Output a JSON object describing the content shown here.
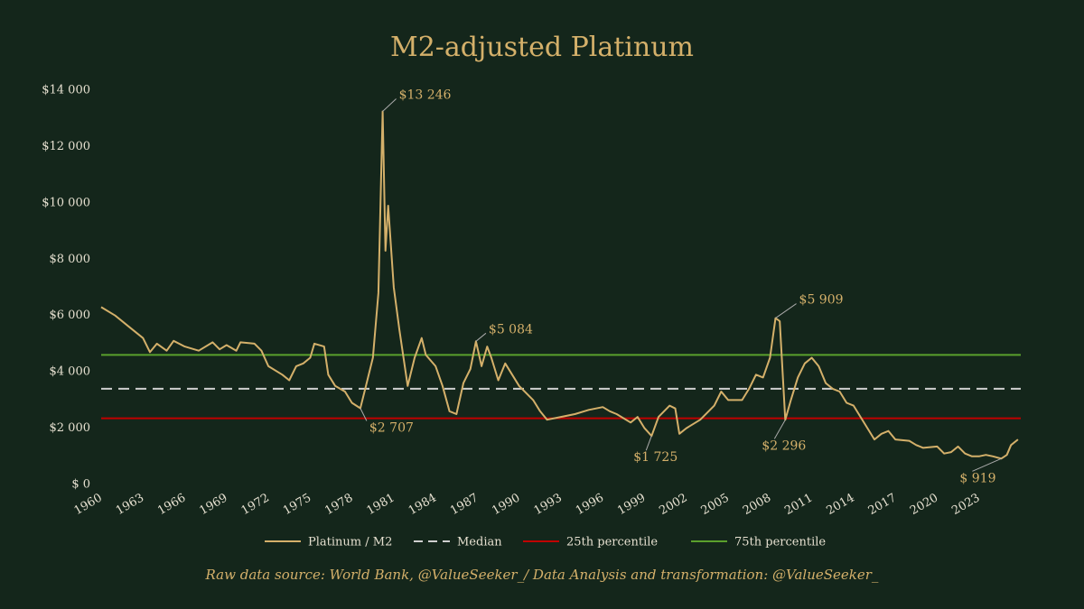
{
  "chart_data": {
    "type": "line",
    "title": "M2-adjusted Platinum",
    "source": "Raw data source: World Bank, @ValueSeeker_/ Data Analysis and transformation: @ValueSeeker_",
    "xlim": [
      1960,
      2026
    ],
    "xticks": [
      1960,
      1963,
      1966,
      1969,
      1972,
      1975,
      1978,
      1981,
      1984,
      1987,
      1990,
      1993,
      1996,
      1999,
      2002,
      2005,
      2008,
      2011,
      2014,
      2017,
      2020,
      2023
    ],
    "ylim": [
      0,
      14000
    ],
    "yticks": [
      {
        "value": 0,
        "label": "$ 0"
      },
      {
        "value": 2000,
        "label": "$2 000"
      },
      {
        "value": 4000,
        "label": "$4 000"
      },
      {
        "value": 6000,
        "label": "$6 000"
      },
      {
        "value": 8000,
        "label": "$8 000"
      },
      {
        "value": 10000,
        "label": "$10 000"
      },
      {
        "value": 12000,
        "label": "$12 000"
      },
      {
        "value": 14000,
        "label": "$14 000"
      }
    ],
    "grid": false,
    "series": [
      {
        "name": "Platinum / M2",
        "color": "#d4b06a",
        "x": [
          1960,
          1961,
          1962,
          1963,
          1963.5,
          1964,
          1964.7,
          1965.2,
          1966,
          1967,
          1968,
          1968.5,
          1969,
          1969.7,
          1970,
          1971,
          1971.5,
          1972,
          1973,
          1973.5,
          1974,
          1974.5,
          1975,
          1975.3,
          1976,
          1976.3,
          1976.8,
          1977.5,
          1978,
          1978.6,
          1979,
          1979.5,
          1979.9,
          1980.2,
          1980.4,
          1980.6,
          1981,
          1981.4,
          1982,
          1982.5,
          1983,
          1983.3,
          1984,
          1984.5,
          1985,
          1985.5,
          1986,
          1986.5,
          1986.9,
          1987.3,
          1987.7,
          1988,
          1988.5,
          1989,
          1989.5,
          1990,
          1991,
          1991.5,
          1992,
          1993,
          1994,
          1995,
          1996,
          1996.5,
          1997,
          1998,
          1998.5,
          1999,
          1999.5,
          2000,
          2000.8,
          2001.2,
          2001.5,
          2002,
          2003,
          2004,
          2004.5,
          2005,
          2006,
          2006.5,
          2007,
          2007.5,
          2008,
          2008.4,
          2008.7,
          2009.1,
          2009.5,
          2010,
          2010.5,
          2011,
          2011.5,
          2012,
          2012.5,
          2013,
          2013.5,
          2014,
          2014.5,
          2015,
          2015.5,
          2016,
          2016.5,
          2017,
          2018,
          2018.5,
          2019,
          2020,
          2020.5,
          2021,
          2021.5,
          2022,
          2022.5,
          2023,
          2023.5,
          2024,
          2024.6,
          2025,
          2025.3,
          2025.8
        ],
        "values": [
          6300,
          6000,
          5600,
          5200,
          4700,
          5000,
          4750,
          5100,
          4900,
          4750,
          5050,
          4800,
          4950,
          4750,
          5050,
          5000,
          4750,
          4200,
          3900,
          3700,
          4200,
          4300,
          4500,
          5000,
          4900,
          3900,
          3500,
          3300,
          2900,
          2707,
          3500,
          4500,
          6800,
          13246,
          8300,
          9900,
          7000,
          5500,
          3500,
          4500,
          5200,
          4600,
          4200,
          3500,
          2600,
          2500,
          3600,
          4100,
          5084,
          4200,
          4900,
          4500,
          3700,
          4300,
          3900,
          3500,
          3000,
          2600,
          2300,
          2400,
          2500,
          2650,
          2750,
          2600,
          2500,
          2200,
          2400,
          2000,
          1725,
          2400,
          2800,
          2700,
          1800,
          2000,
          2300,
          2800,
          3300,
          3000,
          3000,
          3400,
          3900,
          3800,
          4500,
          5909,
          5800,
          2296,
          3000,
          3800,
          4300,
          4500,
          4200,
          3600,
          3400,
          3300,
          2900,
          2800,
          2400,
          2000,
          1600,
          1800,
          1900,
          1600,
          1550,
          1400,
          1300,
          1350,
          1100,
          1150,
          1350,
          1100,
          1000,
          1000,
          1050,
          1000,
          919,
          1050,
          1400,
          1600
        ]
      }
    ],
    "reference_lines": [
      {
        "name": "Median",
        "value": 3400,
        "color": "#cfcfcf",
        "style": "dashed"
      },
      {
        "name": "25th percentile",
        "value": 2350,
        "color": "#c00000",
        "style": "solid"
      },
      {
        "name": "75th percentile",
        "value": 4600,
        "color": "#5aa02c",
        "style": "solid"
      }
    ],
    "annotations": [
      {
        "x": 1980.2,
        "y": 13246,
        "label": "$13 246"
      },
      {
        "x": 1978.6,
        "y": 2707,
        "label": "$2 707"
      },
      {
        "x": 1986.9,
        "y": 5084,
        "label": "$5 084"
      },
      {
        "x": 1999.5,
        "y": 1725,
        "label": "$1 725"
      },
      {
        "x": 2008.4,
        "y": 5909,
        "label": "$5 909"
      },
      {
        "x": 2009.1,
        "y": 2296,
        "label": "$2 296"
      },
      {
        "x": 2024.6,
        "y": 919,
        "label": "$ 919"
      }
    ]
  }
}
